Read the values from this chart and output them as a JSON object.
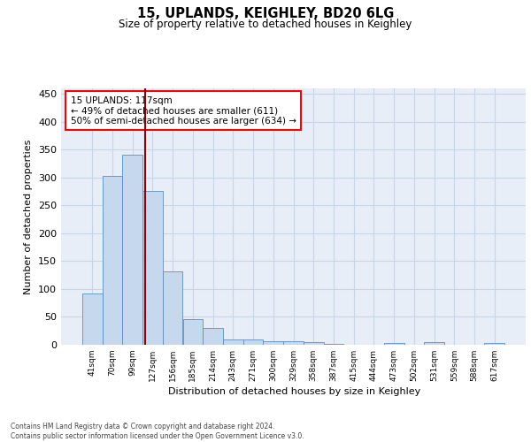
{
  "title": "15, UPLANDS, KEIGHLEY, BD20 6LG",
  "subtitle": "Size of property relative to detached houses in Keighley",
  "xlabel": "Distribution of detached houses by size in Keighley",
  "ylabel": "Number of detached properties",
  "categories": [
    "41sqm",
    "70sqm",
    "99sqm",
    "127sqm",
    "156sqm",
    "185sqm",
    "214sqm",
    "243sqm",
    "271sqm",
    "300sqm",
    "329sqm",
    "358sqm",
    "387sqm",
    "415sqm",
    "444sqm",
    "473sqm",
    "502sqm",
    "531sqm",
    "559sqm",
    "588sqm",
    "617sqm"
  ],
  "values": [
    92,
    303,
    341,
    276,
    131,
    46,
    30,
    10,
    10,
    7,
    7,
    4,
    2,
    0,
    0,
    3,
    0,
    4,
    0,
    0,
    3
  ],
  "bar_color": "#c5d8ed",
  "bar_edge_color": "#5b8ec4",
  "ylim": [
    0,
    460
  ],
  "yticks": [
    0,
    50,
    100,
    150,
    200,
    250,
    300,
    350,
    400,
    450
  ],
  "annotation_box_text": "15 UPLANDS: 117sqm\n← 49% of detached houses are smaller (611)\n50% of semi-detached houses are larger (634) →",
  "vline_color": "#8b0000",
  "grid_color": "#c8d4e8",
  "background_color": "#e8eef8",
  "footer_line1": "Contains HM Land Registry data © Crown copyright and database right 2024.",
  "footer_line2": "Contains public sector information licensed under the Open Government Licence v3.0."
}
